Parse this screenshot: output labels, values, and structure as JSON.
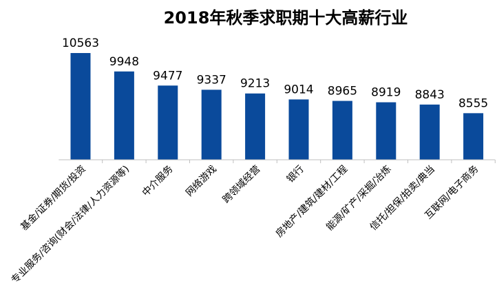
{
  "chart_data": {
    "type": "bar",
    "title": "2018年秋季求职期十大高薪行业",
    "xlabel": "",
    "ylabel": "",
    "categories": [
      "基金/证券/期货/投资",
      "专业服务/咨询(财会/法律/人力资源等)",
      "中介服务",
      "网络游戏",
      "跨领域经营",
      "银行",
      "房地产/建筑/建材/工程",
      "能源/矿产/采掘/冶炼",
      "信托/担保/拍卖/典当",
      "互联网/电子商务"
    ],
    "values": [
      10563,
      9948,
      9477,
      9337,
      9213,
      9014,
      8965,
      8919,
      8843,
      8555
    ],
    "ylim": [
      7000,
      11000
    ],
    "grid": false,
    "legend": "none",
    "colors": {
      "bar": "#0a4a9b",
      "axis": "#bfbfbf"
    }
  }
}
